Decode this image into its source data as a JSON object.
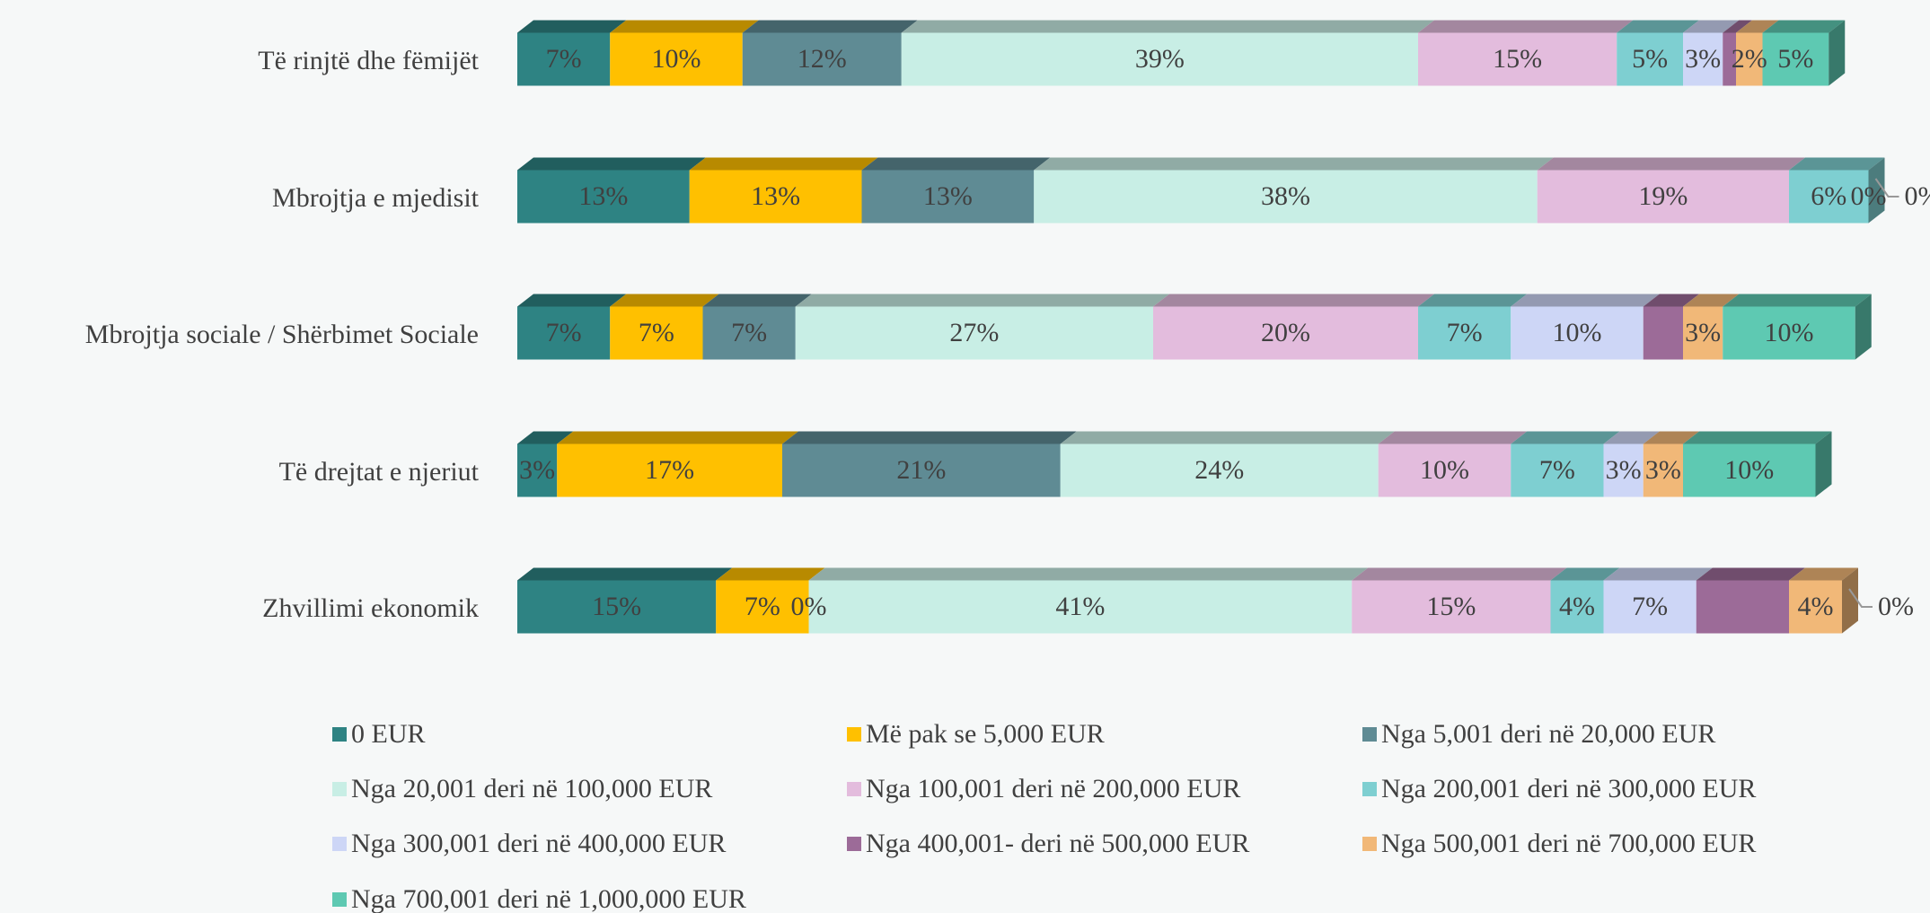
{
  "chart_data": {
    "type": "stacked_barh_3d",
    "categories": [
      "Të rinjtë dhe fëmijët",
      "Mbrojtja e mjedisit",
      "Mbrojtja sociale / Shërbimet Sociale",
      "Të drejtat e njeriut",
      "Zhvillimi ekonomik"
    ],
    "xlim": [
      0,
      100
    ],
    "legend": "bottom",
    "series": [
      {
        "name": "0 EUR",
        "color": "#2e8383",
        "values": [
          7,
          13,
          7,
          3,
          15
        ],
        "value_labels": [
          "7%",
          "13%",
          "7%",
          "3%",
          "15%"
        ]
      },
      {
        "name": "Më pak se 5,000 EUR",
        "color": "#ffc000",
        "values": [
          10,
          13,
          7,
          17,
          7
        ],
        "value_labels": [
          "10%",
          "13%",
          "7%",
          "17%",
          "7%"
        ]
      },
      {
        "name": "Nga 5,001 deri në 20,000 EUR",
        "color": "#5f8b94",
        "values": [
          12,
          13,
          7,
          21,
          0
        ],
        "value_labels": [
          "12%",
          "13%",
          "7%",
          "21%",
          "0%"
        ]
      },
      {
        "name": "Nga 20,001 deri në 100,000 EUR",
        "color": "#c8eee5",
        "values": [
          39,
          38,
          27,
          24,
          41
        ],
        "value_labels": [
          "39%",
          "38%",
          "27%",
          "24%",
          "41%"
        ]
      },
      {
        "name": "Nga 100,001 deri në 200,000 EUR",
        "color": "#e3bcdd",
        "values": [
          15,
          19,
          20,
          10,
          15
        ],
        "value_labels": [
          "15%",
          "19%",
          "20%",
          "10%",
          "15%"
        ]
      },
      {
        "name": "Nga 200,001 deri në 300,000 EUR",
        "color": "#7ecfd1",
        "values": [
          5,
          6,
          7,
          7,
          4
        ],
        "value_labels": [
          "5%",
          "6%",
          "7%",
          "7%",
          "4%"
        ]
      },
      {
        "name": "Nga 300,001 deri në 400,000 EUR",
        "color": "#cdd6f6",
        "values": [
          3,
          0,
          10,
          3,
          7
        ],
        "value_labels": [
          "3%",
          "0%",
          "10%",
          "3%",
          "7%"
        ]
      },
      {
        "name": "Nga 400,001- deri në 500,000 EUR",
        "color": "#9c6b98",
        "values": [
          1,
          0,
          3,
          0,
          7
        ],
        "value_labels": [
          null,
          null,
          null,
          null,
          null
        ]
      },
      {
        "name": "Nga 500,001 deri në 700,000 EUR",
        "color": "#f1b878",
        "values": [
          2,
          0,
          3,
          3,
          4
        ],
        "value_labels": [
          "2%",
          null,
          "3%",
          "3%",
          "4%"
        ]
      },
      {
        "name": "Nga 700,001 deri në 1,000,000 EUR",
        "color": "#5ec9b2",
        "values": [
          5,
          0,
          10,
          10,
          0
        ],
        "value_labels": [
          "5%",
          "0%",
          "10%",
          "10%",
          "0%"
        ]
      }
    ]
  }
}
